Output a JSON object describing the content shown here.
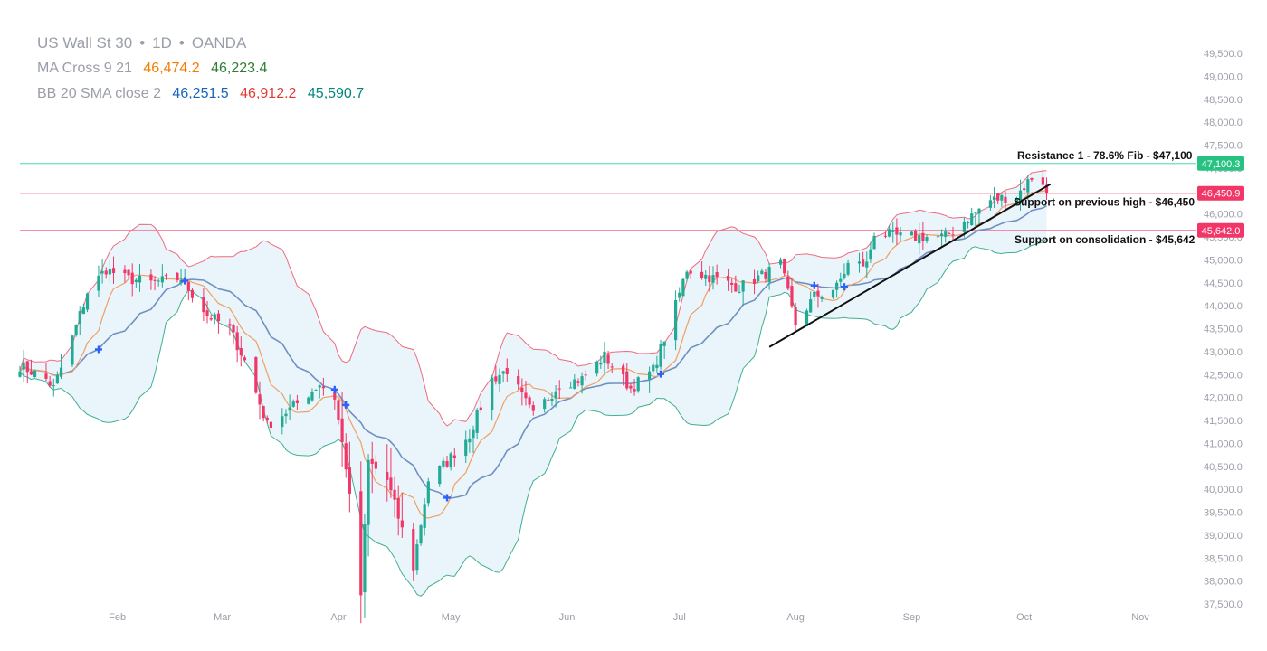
{
  "header": {
    "symbol": "US Wall St 30",
    "interval": "1D",
    "source": "OANDA",
    "sep": "•",
    "indicators": [
      {
        "name": "MA Cross 9 21",
        "values": [
          {
            "text": "46,474.2",
            "color": "#f57c00"
          },
          {
            "text": "46,223.4",
            "color": "#2e7d32"
          }
        ]
      },
      {
        "name": "BB 20 SMA close 2",
        "values": [
          {
            "text": "46,251.5",
            "color": "#1565c0"
          },
          {
            "text": "46,912.2",
            "color": "#e53935"
          },
          {
            "text": "45,590.7",
            "color": "#00897b"
          }
        ]
      }
    ]
  },
  "colors": {
    "up": "#22ab94",
    "down": "#f23668",
    "bb_upper": "#f06c7c",
    "bb_lower": "#3fb08f",
    "bb_fill": "#eaf4fb",
    "ma_fast": "#f0a060",
    "ma_slow": "#7090c0",
    "cross_marker": "#2962ff",
    "resistance": "#6be0b8",
    "support": "#f06c8c",
    "trendline": "#111111"
  },
  "chart_data": {
    "type": "candlestick",
    "symbol": "US Wall St 30",
    "interval": "1D",
    "source": "OANDA",
    "ylim": [
      37500,
      49500
    ],
    "y_ticks": [
      "37,500.0",
      "38,000.0",
      "38,500.0",
      "39,000.0",
      "39,500.0",
      "40,000.0",
      "40,500.0",
      "41,000.0",
      "41,500.0",
      "42,000.0",
      "42,500.0",
      "43,000.0",
      "43,500.0",
      "44,000.0",
      "44,500.0",
      "45,000.0",
      "45,500.0",
      "46,000.0",
      "46,500.0",
      "47,000.0",
      "47,500.0",
      "48,000.0",
      "48,500.0",
      "49,000.0",
      "49,500.0"
    ],
    "x_months": [
      "Feb",
      "Mar",
      "Apr",
      "May",
      "Jun",
      "Jul",
      "Aug",
      "Sep",
      "Oct",
      "Nov"
    ],
    "x_start": "2025-01-06",
    "x_end": "2025-11-15",
    "x_month_dates": [
      "2025-02-01",
      "2025-03-01",
      "2025-04-01",
      "2025-05-01",
      "2025-06-01",
      "2025-07-01",
      "2025-08-01",
      "2025-09-01",
      "2025-10-01",
      "2025-11-01"
    ],
    "close_anchors": [
      [
        "2025-01-06",
        42700
      ],
      [
        "2025-01-13",
        42400
      ],
      [
        "2025-01-15",
        42200
      ],
      [
        "2025-01-20",
        43300
      ],
      [
        "2025-01-24",
        44300
      ],
      [
        "2025-01-29",
        44800
      ],
      [
        "2025-02-03",
        44600
      ],
      [
        "2025-02-10",
        44500
      ],
      [
        "2025-02-18",
        44600
      ],
      [
        "2025-02-25",
        43800
      ],
      [
        "2025-03-03",
        43500
      ],
      [
        "2025-03-07",
        42800
      ],
      [
        "2025-03-13",
        41400
      ],
      [
        "2025-03-20",
        41800
      ],
      [
        "2025-03-27",
        42300
      ],
      [
        "2025-03-31",
        42000
      ],
      [
        "2025-04-03",
        40500
      ],
      [
        "2025-04-07",
        37700
      ],
      [
        "2025-04-09",
        40600
      ],
      [
        "2025-04-14",
        40200
      ],
      [
        "2025-04-21",
        38300
      ],
      [
        "2025-04-25",
        40200
      ],
      [
        "2025-04-30",
        40600
      ],
      [
        "2025-05-06",
        41200
      ],
      [
        "2025-05-12",
        42400
      ],
      [
        "2025-05-16",
        42600
      ],
      [
        "2025-05-23",
        41600
      ],
      [
        "2025-05-30",
        42300
      ],
      [
        "2025-06-05",
        42400
      ],
      [
        "2025-06-11",
        42900
      ],
      [
        "2025-06-18",
        42200
      ],
      [
        "2025-06-24",
        42600
      ],
      [
        "2025-06-30",
        44000
      ],
      [
        "2025-07-03",
        44800
      ],
      [
        "2025-07-10",
        44600
      ],
      [
        "2025-07-17",
        44400
      ],
      [
        "2025-07-24",
        44700
      ],
      [
        "2025-07-28",
        44900
      ],
      [
        "2025-08-01",
        43600
      ],
      [
        "2025-08-06",
        44200
      ],
      [
        "2025-08-12",
        44400
      ],
      [
        "2025-08-15",
        44900
      ],
      [
        "2025-08-20",
        44900
      ],
      [
        "2025-08-22",
        45600
      ],
      [
        "2025-08-29",
        45500
      ],
      [
        "2025-09-04",
        45500
      ],
      [
        "2025-09-10",
        45500
      ],
      [
        "2025-09-16",
        45900
      ],
      [
        "2025-09-22",
        46300
      ],
      [
        "2025-09-29",
        46400
      ],
      [
        "2025-10-03",
        46800
      ],
      [
        "2025-10-06",
        46700
      ],
      [
        "2025-10-07",
        46450
      ]
    ],
    "ma_cross_dates": [
      "2025-01-27",
      "2025-02-19",
      "2025-03-31",
      "2025-04-03",
      "2025-04-30",
      "2025-06-26",
      "2025-08-06",
      "2025-08-14"
    ],
    "levels": [
      {
        "label": "Resistance 1 - 78.6% Fib - $47,100",
        "price": 47100.3,
        "price_text": "47,100.3",
        "kind": "resistance"
      },
      {
        "label": "Support on previous high - $46,450",
        "price": 46450.9,
        "price_text": "46,450.9",
        "kind": "support"
      },
      {
        "label": "Support on consolidation - $45,642",
        "price": 45642.0,
        "price_text": "45,642.0",
        "kind": "support"
      }
    ],
    "trendline": {
      "start": [
        "2025-07-25",
        43100
      ],
      "end": [
        "2025-10-08",
        46650
      ]
    },
    "grid": false,
    "legend_position": "top-left"
  }
}
